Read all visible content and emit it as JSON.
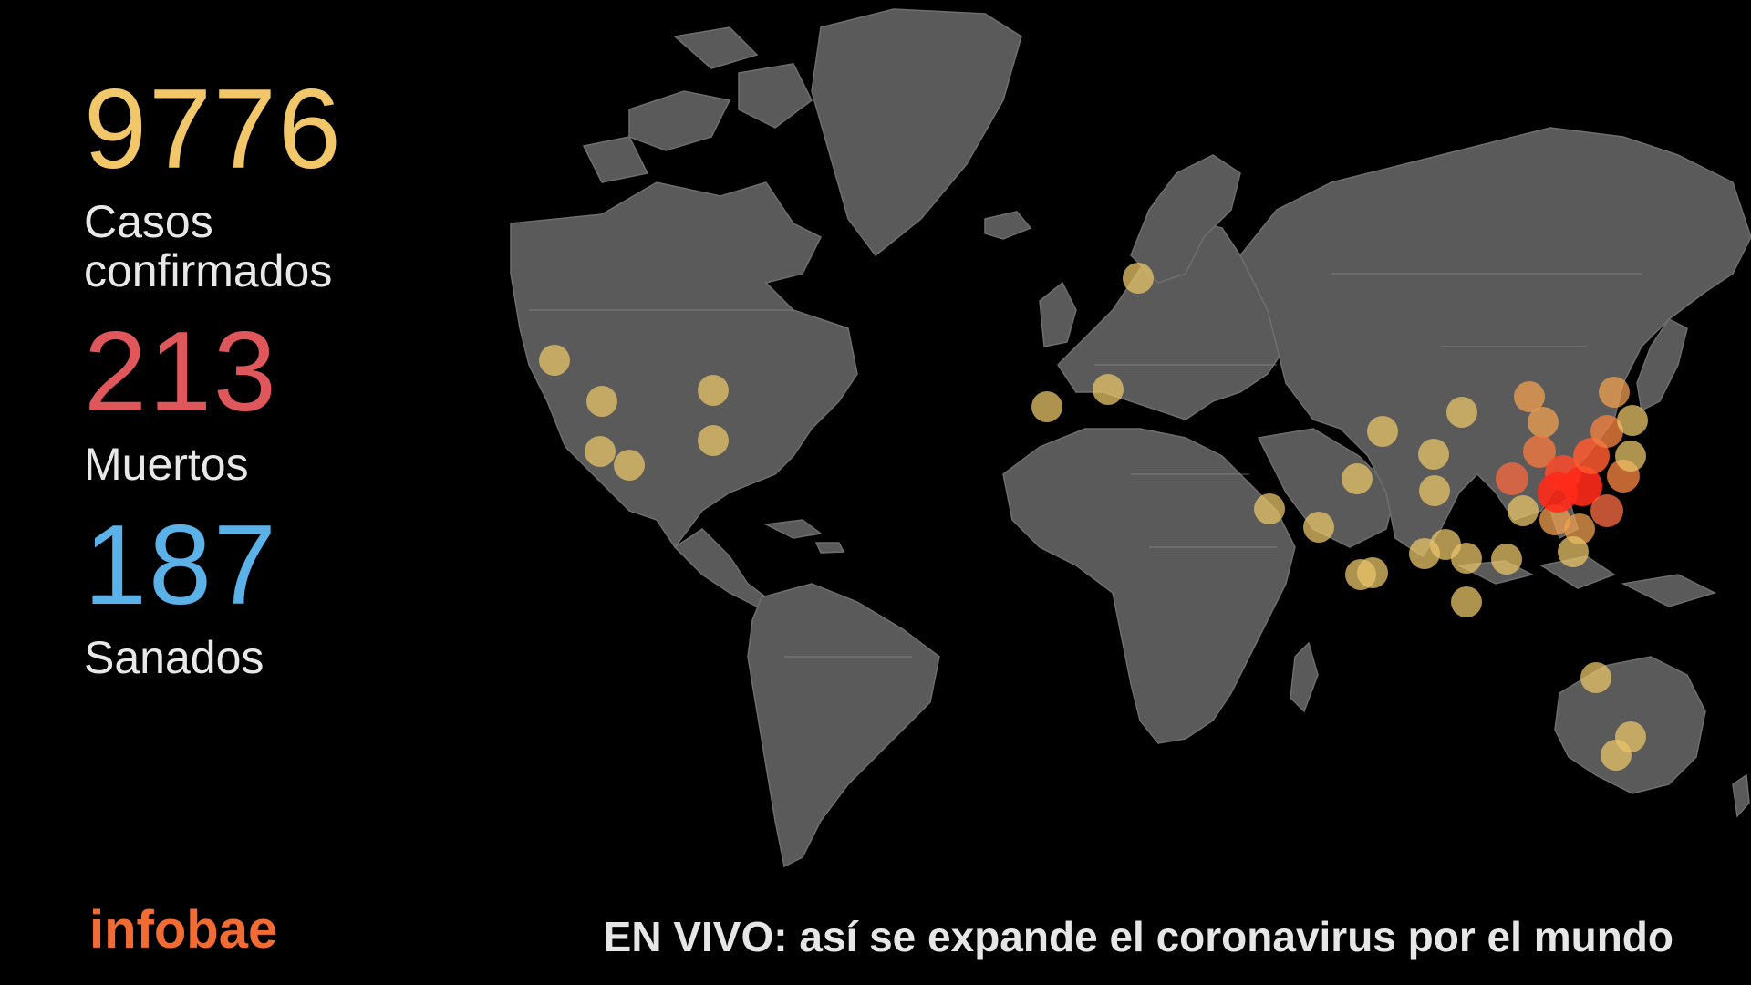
{
  "stats": {
    "cases": {
      "value": "9776",
      "label_line1": "Casos",
      "label_line2": "confirmados",
      "color": "#f2c76a"
    },
    "deaths": {
      "value": "213",
      "label": "Muertos",
      "color": "#e0575b"
    },
    "recovered": {
      "value": "187",
      "label": "Sanados",
      "color": "#5ab2e8"
    }
  },
  "brand": {
    "name": "infobae",
    "color": "#f26b32"
  },
  "caption": {
    "text": "EN VIVO: así se expande el coronavirus por el mundo"
  },
  "colors": {
    "background": "#000000",
    "land": "#5a5a5a",
    "marker_low": "#e8c46a",
    "marker_high": "#ff2a1a"
  }
}
